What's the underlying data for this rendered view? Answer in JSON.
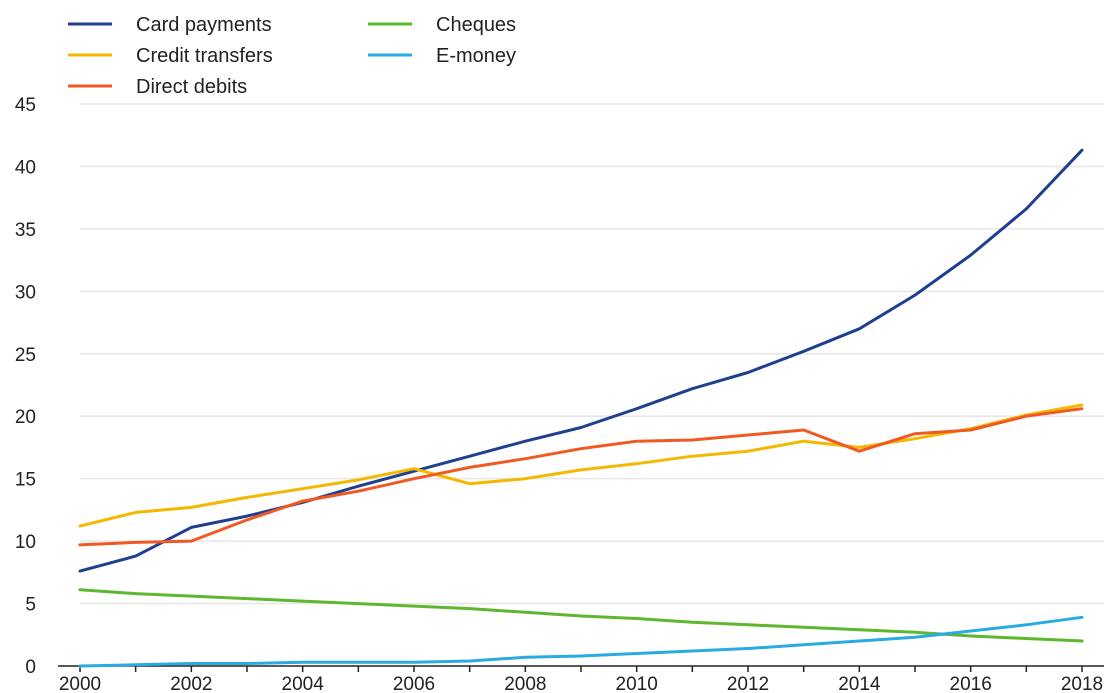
{
  "chart_data": {
    "type": "line",
    "title": "",
    "xlabel": "",
    "ylabel": "",
    "x": [
      2000,
      2001,
      2002,
      2003,
      2004,
      2005,
      2006,
      2007,
      2008,
      2009,
      2010,
      2011,
      2012,
      2013,
      2014,
      2015,
      2016,
      2017,
      2018
    ],
    "ylim": [
      0,
      45
    ],
    "xlim": [
      2000,
      2018
    ],
    "y_ticks": [
      "0",
      "5",
      "10",
      "15",
      "20",
      "25",
      "30",
      "35",
      "40",
      "45"
    ],
    "x_ticks": [
      "2000",
      "2002",
      "2004",
      "2006",
      "2008",
      "2010",
      "2012",
      "2014",
      "2016",
      "2018"
    ],
    "grid": true,
    "legend_position": "top-left",
    "series": [
      {
        "name": "Card payments",
        "color": "#1f3f8f",
        "values": [
          7.6,
          8.8,
          11.1,
          12.0,
          13.1,
          14.4,
          15.6,
          16.8,
          18.0,
          19.1,
          20.6,
          22.2,
          23.5,
          25.2,
          27.0,
          29.7,
          32.9,
          36.6,
          41.3
        ]
      },
      {
        "name": "Credit transfers",
        "color": "#f5b800",
        "values": [
          11.2,
          12.3,
          12.7,
          13.5,
          14.2,
          14.9,
          15.8,
          14.6,
          15.0,
          15.7,
          16.2,
          16.8,
          17.2,
          18.0,
          17.5,
          18.2,
          19.0,
          20.1,
          20.9
        ]
      },
      {
        "name": "Direct debits",
        "color": "#f05a22",
        "values": [
          9.7,
          9.9,
          10.0,
          11.7,
          13.2,
          14.0,
          15.0,
          15.9,
          16.6,
          17.4,
          18.0,
          18.1,
          18.5,
          18.9,
          17.2,
          18.6,
          18.9,
          20.0,
          20.6
        ]
      },
      {
        "name": "Cheques",
        "color": "#5eb82f",
        "values": [
          6.1,
          5.8,
          5.6,
          5.4,
          5.2,
          5.0,
          4.8,
          4.6,
          4.3,
          4.0,
          3.8,
          3.5,
          3.3,
          3.1,
          2.9,
          2.7,
          2.4,
          2.2,
          2.0
        ]
      },
      {
        "name": "E-money",
        "color": "#29abe2",
        "values": [
          0.0,
          0.1,
          0.2,
          0.2,
          0.3,
          0.3,
          0.3,
          0.4,
          0.7,
          0.8,
          1.0,
          1.2,
          1.4,
          1.7,
          2.0,
          2.3,
          2.8,
          3.3,
          3.9
        ]
      }
    ]
  }
}
